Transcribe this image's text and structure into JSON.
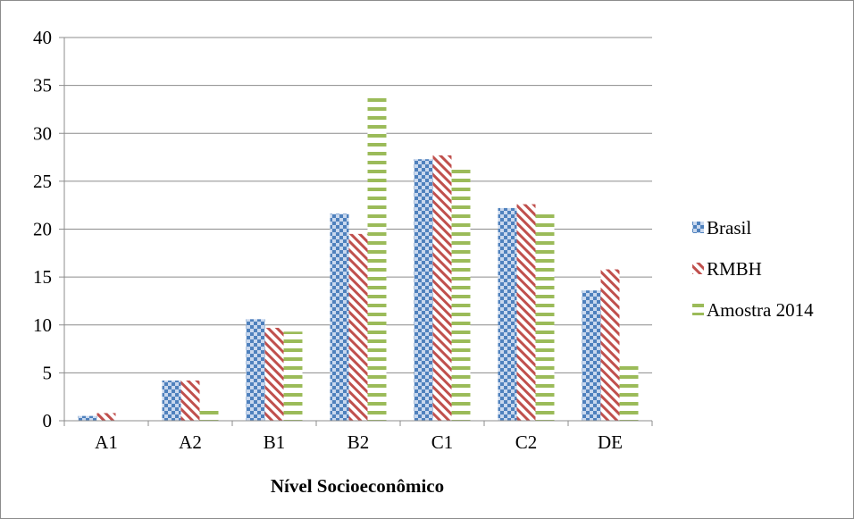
{
  "chart_data": {
    "type": "bar",
    "title": "",
    "xlabel": "Nível Socioeconômico",
    "ylabel": "",
    "ylim": [
      0,
      40
    ],
    "yticks": [
      0,
      5,
      10,
      15,
      20,
      25,
      30,
      35,
      40
    ],
    "grid": true,
    "legend_position": "right",
    "categories": [
      "A1",
      "A2",
      "B1",
      "B2",
      "C1",
      "C2",
      "DE"
    ],
    "series": [
      {
        "name": "Brasil",
        "color": "#4f81bd",
        "pattern": "checkered",
        "values": [
          0.5,
          4.2,
          10.6,
          21.6,
          27.3,
          22.2,
          13.6
        ]
      },
      {
        "name": "RMBH",
        "color": "#c0504d",
        "pattern": "diagonal-stripes",
        "values": [
          0.8,
          4.2,
          9.7,
          19.5,
          27.7,
          22.6,
          15.8
        ]
      },
      {
        "name": "Amostra 2014",
        "color": "#9bbb59",
        "pattern": "horizontal-stripes",
        "values": [
          0.0,
          1.2,
          9.3,
          34.1,
          26.3,
          21.9,
          6.1
        ]
      }
    ]
  }
}
